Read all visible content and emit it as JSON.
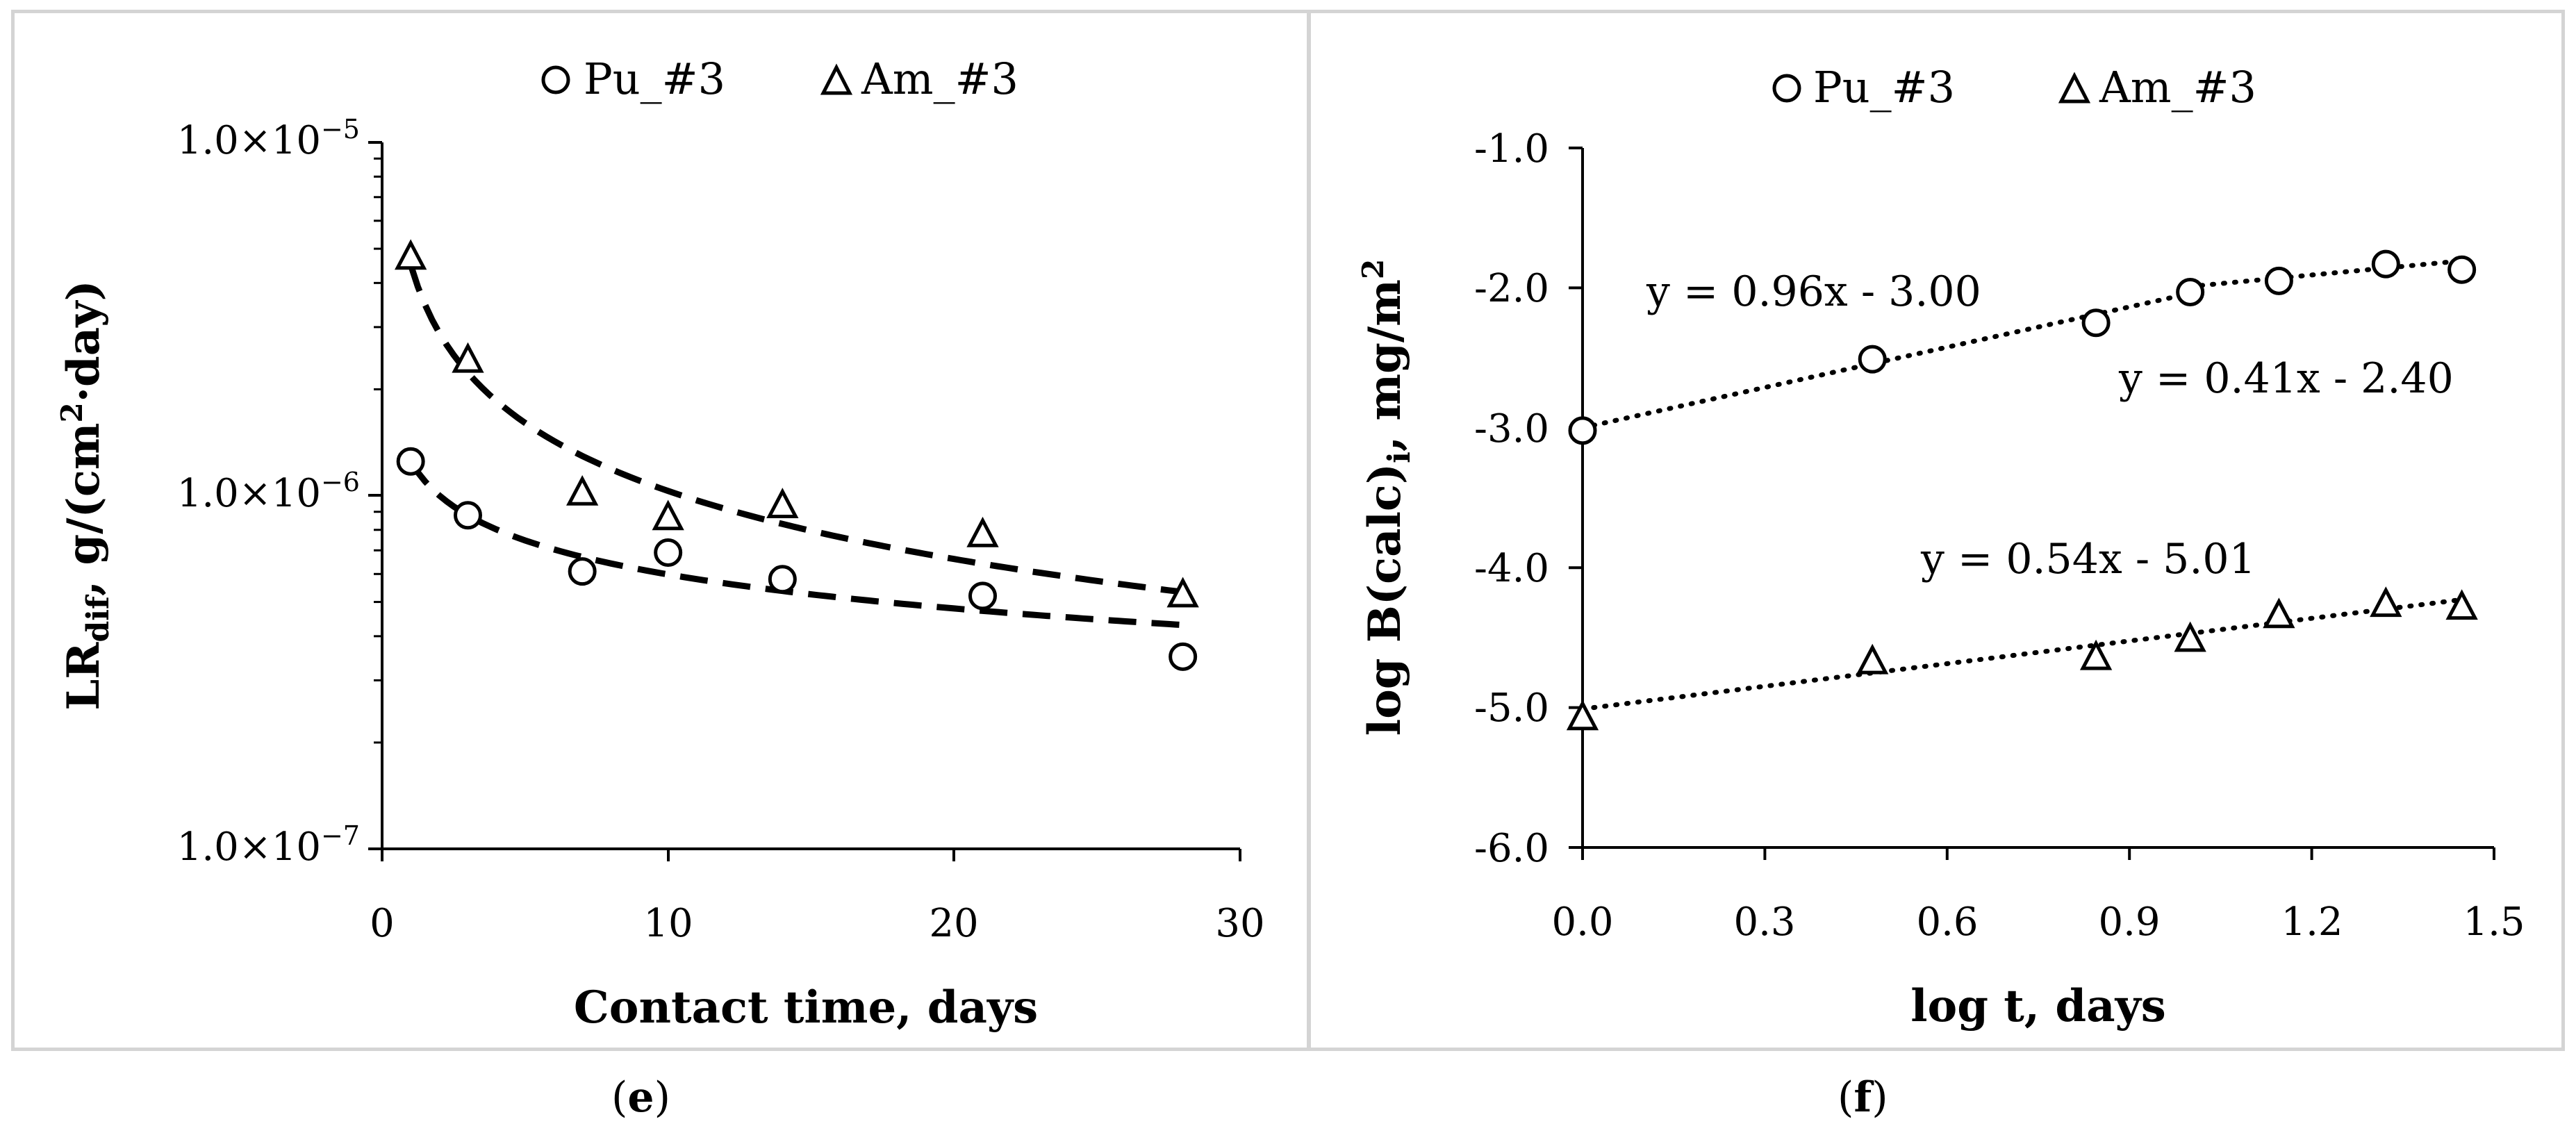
{
  "colors": {
    "ink": "#000000",
    "frame": "#d4d4d4",
    "background": "#ffffff"
  },
  "chart_data": [
    {
      "panel": "e",
      "type": "scatter",
      "yscale": "log",
      "xlabel": "Contact time, days",
      "ylabel": {
        "main": "LR",
        "sub": "dif",
        "rest": ", g/(cm",
        "sup": "2",
        "tail": "·day)"
      },
      "xlim": [
        0,
        30
      ],
      "ylim": [
        1e-07,
        1e-05
      ],
      "xticks": [
        "0",
        "10",
        "20",
        "30"
      ],
      "yticks": [
        {
          "mant": "1.0×10",
          "exp": "−7",
          "value": 1e-07
        },
        {
          "mant": "1.0×10",
          "exp": "−6",
          "value": 1e-06
        },
        {
          "mant": "1.0×10",
          "exp": "−5",
          "value": 1e-05
        }
      ],
      "legend": [
        "Pu_#3",
        "Am_#3"
      ],
      "series": [
        {
          "name": "Pu_#3",
          "marker": "circle",
          "x": [
            1,
            3,
            7,
            10,
            14,
            21,
            28
          ],
          "y": [
            1.25e-06,
            8.8e-07,
            6.1e-07,
            6.9e-07,
            5.8e-07,
            5.2e-07,
            3.5e-07
          ],
          "trend": {
            "type": "power",
            "a": 1.25e-06,
            "b": -0.32
          }
        },
        {
          "name": "Am_#3",
          "marker": "triangle",
          "x": [
            1,
            3,
            7,
            10,
            14,
            21,
            28
          ],
          "y": [
            4.7e-06,
            2.4e-06,
            1.01e-06,
            8.6e-07,
            9.3e-07,
            7.7e-07,
            5.2e-07
          ],
          "trend": {
            "type": "power",
            "a": 4.5e-06,
            "b": -0.64
          }
        }
      ],
      "caption": {
        "open": "(",
        "letter": "e",
        "close": ")"
      }
    },
    {
      "panel": "f",
      "type": "scatter",
      "xlabel": "log t, days",
      "ylabel": {
        "main": "log B(calc)",
        "sub": "i",
        "rest": ", mg/m",
        "sup": "2"
      },
      "xlim": [
        0,
        1.5
      ],
      "ylim": [
        -6.0,
        -1.0
      ],
      "xticks": [
        "0.0",
        "0.3",
        "0.6",
        "0.9",
        "1.2",
        "1.5"
      ],
      "yticks": [
        "-6.0",
        "-5.0",
        "-4.0",
        "-3.0",
        "-2.0",
        "-1.0"
      ],
      "legend": [
        "Pu_#3",
        "Am_#3"
      ],
      "series": [
        {
          "name": "Pu_#3",
          "marker": "circle",
          "x": [
            0.0,
            0.477,
            0.845,
            1.0,
            1.146,
            1.322,
            1.447
          ],
          "y": [
            -3.02,
            -2.51,
            -2.25,
            -2.03,
            -1.95,
            -1.83,
            -1.87
          ]
        },
        {
          "name": "Am_#3",
          "marker": "triangle",
          "x": [
            0.0,
            0.477,
            0.845,
            1.0,
            1.146,
            1.322,
            1.447
          ],
          "y": [
            -5.08,
            -4.68,
            -4.65,
            -4.52,
            -4.35,
            -4.27,
            -4.29
          ]
        }
      ],
      "trendlines": [
        {
          "from": 0.0,
          "to": 1.0,
          "slope": 0.96,
          "intercept": -3.0
        },
        {
          "from": 1.0,
          "to": 1.447,
          "slope": 0.41,
          "intercept": -2.4
        },
        {
          "from": 0.0,
          "to": 1.447,
          "slope": 0.54,
          "intercept": -5.01
        }
      ],
      "annotations": [
        "y = 0.96x - 3.00",
        "y = 0.41x - 2.40",
        "y = 0.54x - 5.01"
      ],
      "caption": {
        "open": "(",
        "letter": "f",
        "close": ")"
      }
    }
  ]
}
